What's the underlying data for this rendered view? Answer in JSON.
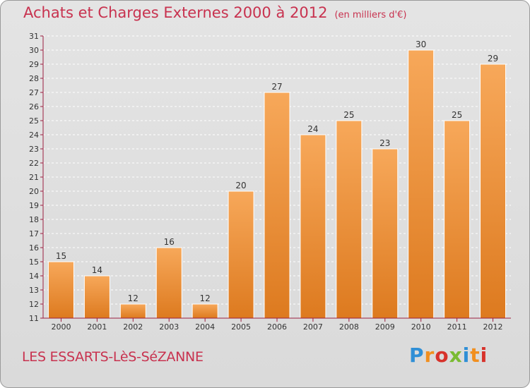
{
  "header": {
    "title": "Achats et Charges Externes 2000 à 2012",
    "unit": "(en milliers d'€)"
  },
  "footer": {
    "city": "LES ESSARTS-LèS-SéZANNE",
    "logo_letters": [
      "P",
      "r",
      "o",
      "x",
      "i",
      "t",
      "i"
    ]
  },
  "colors": {
    "title": "#c8324f",
    "bar_top": "#f7a85a",
    "bar_bottom": "#dd7a1f",
    "axis": "#9b1f40",
    "grid": "#ffffff",
    "background": "#dedede"
  },
  "chart_data": {
    "type": "bar",
    "title": "Achats et Charges Externes 2000 à 2012",
    "xlabel": "",
    "ylabel": "",
    "categories": [
      "2000",
      "2001",
      "2002",
      "2003",
      "2004",
      "2005",
      "2006",
      "2007",
      "2008",
      "2009",
      "2010",
      "2011",
      "2012"
    ],
    "values": [
      15,
      14,
      12,
      16,
      12,
      20,
      27,
      24,
      25,
      23,
      30,
      25,
      29
    ],
    "data_labels": [
      "15",
      "14",
      "12",
      "16",
      "12",
      "20",
      "27",
      "24",
      "25",
      "23",
      "30",
      "25",
      "29"
    ],
    "ylim": [
      11,
      31
    ],
    "yticks": [
      11,
      12,
      13,
      14,
      15,
      16,
      17,
      18,
      19,
      20,
      21,
      22,
      23,
      24,
      25,
      26,
      27,
      28,
      29,
      30,
      31
    ],
    "grid": true,
    "legend": "none"
  }
}
